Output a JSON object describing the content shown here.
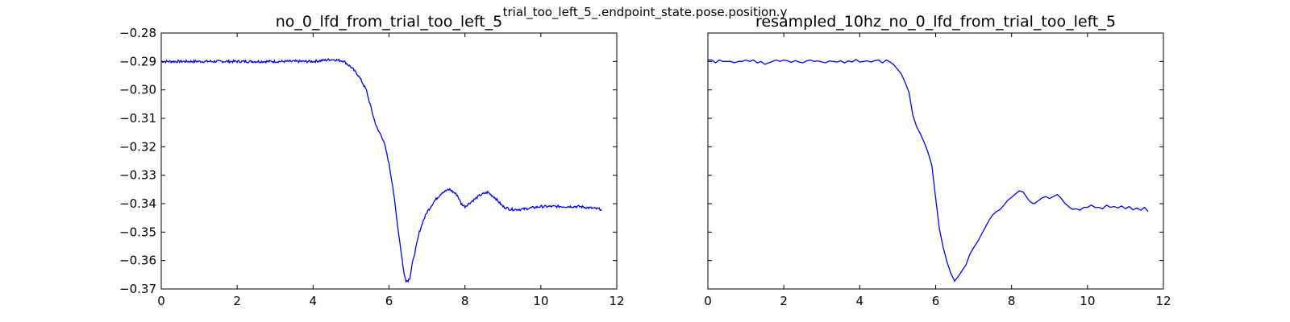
{
  "figure": {
    "suptitle": "trial_too_left_5_.endpoint_state.pose.position.y"
  },
  "chart_data": [
    {
      "type": "line",
      "title": "no_0_lfd_from_trial_too_left_5",
      "xlabel": "",
      "ylabel": "",
      "xlim": [
        0,
        12
      ],
      "ylim": [
        -0.37,
        -0.28
      ],
      "xticks": [
        0,
        2,
        4,
        6,
        8,
        10,
        12
      ],
      "xtick_labels": [
        "0",
        "2",
        "4",
        "6",
        "8",
        "10",
        "12"
      ],
      "yticks": [
        -0.28,
        -0.29,
        -0.3,
        -0.31,
        -0.32,
        -0.33,
        -0.34,
        -0.35,
        -0.36,
        -0.37
      ],
      "ytick_labels": [
        "−0.28",
        "−0.29",
        "−0.30",
        "−0.31",
        "−0.32",
        "−0.33",
        "−0.34",
        "−0.35",
        "−0.36",
        "−0.37"
      ],
      "grid": false,
      "legend": "none",
      "line_color": "#0000ff",
      "sampling": "raw, ~100 Hz (noisy)",
      "series": [
        {
          "x": [
            0,
            0.5,
            1.0,
            1.5,
            2.0,
            2.5,
            3.0,
            3.5,
            4.0,
            4.5,
            4.8,
            5.0,
            5.2,
            5.4,
            5.5,
            5.6,
            5.7,
            5.8,
            5.9,
            6.0,
            6.1,
            6.2,
            6.3,
            6.35,
            6.4,
            6.45,
            6.5,
            6.55,
            6.6,
            6.7,
            6.8,
            6.9,
            7.0,
            7.2,
            7.4,
            7.6,
            7.8,
            7.9,
            8.0,
            8.2,
            8.4,
            8.6,
            8.8,
            9.0,
            9.2,
            9.5,
            10.0,
            10.5,
            11.0,
            11.6
          ],
          "y": [
            -0.29,
            -0.29,
            -0.29,
            -0.29,
            -0.29,
            -0.29,
            -0.29,
            -0.29,
            -0.29,
            -0.2893,
            -0.2898,
            -0.292,
            -0.295,
            -0.3,
            -0.305,
            -0.31,
            -0.314,
            -0.316,
            -0.32,
            -0.326,
            -0.334,
            -0.345,
            -0.355,
            -0.36,
            -0.365,
            -0.367,
            -0.367,
            -0.366,
            -0.362,
            -0.356,
            -0.35,
            -0.346,
            -0.343,
            -0.339,
            -0.336,
            -0.335,
            -0.337,
            -0.34,
            -0.341,
            -0.339,
            -0.337,
            -0.336,
            -0.338,
            -0.341,
            -0.342,
            -0.342,
            -0.341,
            -0.341,
            -0.341,
            -0.342
          ]
        }
      ]
    },
    {
      "type": "line",
      "title": "resampled_10hz_no_0_lfd_from_trial_too_left_5",
      "xlabel": "",
      "ylabel": "",
      "xlim": [
        0,
        12
      ],
      "ylim": [
        -0.37,
        -0.28
      ],
      "xticks": [
        0,
        2,
        4,
        6,
        8,
        10,
        12
      ],
      "xtick_labels": [
        "0",
        "2",
        "4",
        "6",
        "8",
        "10",
        "12"
      ],
      "shared_y": true,
      "grid": false,
      "legend": "none",
      "line_color": "#0000ff",
      "series": [
        {
          "x": [
            0,
            0.1,
            0.2,
            0.3,
            0.4,
            0.5,
            0.6,
            0.7,
            0.8,
            0.9,
            1.0,
            1.1,
            1.2,
            1.3,
            1.4,
            1.5,
            1.6,
            1.7,
            1.8,
            1.9,
            2.0,
            2.1,
            2.2,
            2.3,
            2.4,
            2.5,
            2.6,
            2.7,
            2.8,
            2.9,
            3.0,
            3.1,
            3.2,
            3.3,
            3.4,
            3.5,
            3.6,
            3.7,
            3.8,
            3.9,
            4.0,
            4.1,
            4.2,
            4.3,
            4.4,
            4.5,
            4.6,
            4.7,
            4.8,
            4.9,
            5.0,
            5.1,
            5.2,
            5.3,
            5.4,
            5.5,
            5.6,
            5.7,
            5.8,
            5.9,
            6.0,
            6.1,
            6.2,
            6.3,
            6.4,
            6.5,
            6.6,
            6.7,
            6.8,
            6.9,
            7.0,
            7.1,
            7.2,
            7.3,
            7.4,
            7.5,
            7.6,
            7.7,
            7.8,
            7.9,
            8.0,
            8.1,
            8.2,
            8.3,
            8.4,
            8.5,
            8.6,
            8.7,
            8.8,
            8.9,
            9.0,
            9.1,
            9.2,
            9.3,
            9.4,
            9.5,
            9.6,
            9.7,
            9.8,
            9.9,
            10.0,
            10.1,
            10.2,
            10.3,
            10.4,
            10.5,
            10.6,
            10.7,
            10.8,
            10.9,
            11.0,
            11.1,
            11.2,
            11.3,
            11.4,
            11.5,
            11.6
          ],
          "y": [
            -0.2895,
            -0.2895,
            -0.2905,
            -0.2895,
            -0.29,
            -0.29,
            -0.29,
            -0.2905,
            -0.29,
            -0.29,
            -0.2895,
            -0.29,
            -0.2895,
            -0.2905,
            -0.29,
            -0.291,
            -0.2905,
            -0.29,
            -0.2895,
            -0.29,
            -0.2895,
            -0.2898,
            -0.2903,
            -0.2897,
            -0.2902,
            -0.2905,
            -0.2898,
            -0.2895,
            -0.29,
            -0.2898,
            -0.2902,
            -0.2905,
            -0.2898,
            -0.29,
            -0.2902,
            -0.2898,
            -0.2905,
            -0.2898,
            -0.2902,
            -0.2893,
            -0.2902,
            -0.29,
            -0.2898,
            -0.2902,
            -0.2897,
            -0.2895,
            -0.2905,
            -0.2895,
            -0.2902,
            -0.2912,
            -0.2928,
            -0.2945,
            -0.2975,
            -0.301,
            -0.309,
            -0.313,
            -0.3155,
            -0.3185,
            -0.322,
            -0.3265,
            -0.338,
            -0.349,
            -0.3555,
            -0.3605,
            -0.3645,
            -0.3672,
            -0.3655,
            -0.3635,
            -0.3615,
            -0.3578,
            -0.3555,
            -0.3535,
            -0.351,
            -0.3485,
            -0.346,
            -0.344,
            -0.3428,
            -0.342,
            -0.3405,
            -0.3388,
            -0.3378,
            -0.3366,
            -0.3355,
            -0.3358,
            -0.3378,
            -0.3395,
            -0.34,
            -0.339,
            -0.338,
            -0.3375,
            -0.3382,
            -0.3375,
            -0.3368,
            -0.338,
            -0.3398,
            -0.341,
            -0.342,
            -0.3418,
            -0.3423,
            -0.3413,
            -0.3413,
            -0.3405,
            -0.3413,
            -0.3413,
            -0.3418,
            -0.3405,
            -0.3413,
            -0.341,
            -0.3415,
            -0.3408,
            -0.3418,
            -0.341,
            -0.3422,
            -0.3415,
            -0.3423,
            -0.3413,
            -0.3428
          ]
        }
      ]
    }
  ]
}
